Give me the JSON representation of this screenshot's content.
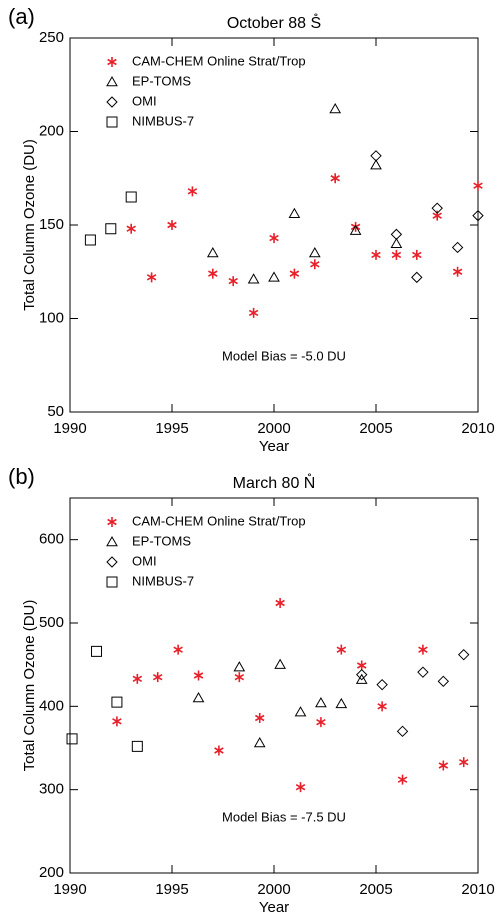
{
  "chart_data": [
    {
      "type": "scatter",
      "panel_label": "(a)",
      "title": "October 88 S̊",
      "xlabel": "Year",
      "ylabel": "Total Column Ozone (DU)",
      "annotation": "Model Bias = -5.0 DU",
      "xlim": [
        1990,
        2010
      ],
      "ylim": [
        50,
        250
      ],
      "xticks": [
        1990,
        1995,
        2000,
        2005,
        2010
      ],
      "yticks": [
        50,
        100,
        150,
        200,
        250
      ],
      "series": [
        {
          "name": "CAM-CHEM Online Strat/Trop",
          "color": "#e8202a",
          "marker": "asterisk",
          "x": [
            1993,
            1994,
            1995,
            1996,
            1997,
            1998,
            1999,
            2000,
            2001,
            2002,
            2003,
            2004,
            2005,
            2006,
            2007,
            2008,
            2009,
            2010
          ],
          "values": [
            148,
            122,
            150,
            168,
            124,
            120,
            103,
            143,
            124,
            129,
            175,
            149,
            134,
            134,
            134,
            155,
            125,
            171
          ]
        },
        {
          "name": "EP-TOMS",
          "color": "#000000",
          "marker": "triangle",
          "x": [
            1997,
            1999,
            2000,
            2001,
            2002,
            2003,
            2004,
            2005,
            2006
          ],
          "values": [
            135,
            121,
            122,
            156,
            135,
            212,
            147,
            182,
            140
          ]
        },
        {
          "name": "OMI",
          "color": "#000000",
          "marker": "diamond",
          "x": [
            2005,
            2006,
            2007,
            2008,
            2009,
            2010
          ],
          "values": [
            187,
            145,
            122,
            159,
            138,
            155
          ]
        },
        {
          "name": "NIMBUS-7",
          "color": "#000000",
          "marker": "square",
          "x": [
            1991,
            1992,
            1993
          ],
          "values": [
            142,
            148,
            165
          ]
        }
      ]
    },
    {
      "type": "scatter",
      "panel_label": "(b)",
      "title": "March 80 N̊",
      "xlabel": "Year",
      "ylabel": "Total Column Ozone (DU)",
      "annotation": "Model Bias = -7.5 DU",
      "xlim": [
        1990,
        2010
      ],
      "ylim": [
        200,
        650
      ],
      "xticks": [
        1990,
        1995,
        2000,
        2005,
        2010
      ],
      "yticks": [
        200,
        300,
        400,
        500,
        600
      ],
      "series": [
        {
          "name": "CAM-CHEM Online Strat/Trop",
          "color": "#e8202a",
          "marker": "asterisk",
          "x": [
            1992.3,
            1993.3,
            1994.3,
            1995.3,
            1996.3,
            1997.3,
            1998.3,
            1999.3,
            2000.3,
            2001.3,
            2002.3,
            2003.3,
            2004.3,
            2005.3,
            2006.3,
            2007.3,
            2008.3,
            2009.3
          ],
          "values": [
            382,
            433,
            435,
            468,
            437,
            347,
            435,
            386,
            524,
            303,
            381,
            468,
            449,
            400,
            312,
            468,
            329,
            333
          ]
        },
        {
          "name": "EP-TOMS",
          "color": "#000000",
          "marker": "triangle",
          "x": [
            1996.3,
            1998.3,
            1999.3,
            2000.3,
            2001.3,
            2002.3,
            2003.3,
            2004.3
          ],
          "values": [
            410,
            447,
            356,
            450,
            393,
            404,
            403,
            432
          ]
        },
        {
          "name": "OMI",
          "color": "#000000",
          "marker": "diamond",
          "x": [
            2004.3,
            2005.3,
            2006.3,
            2007.3,
            2008.3,
            2009.3
          ],
          "values": [
            438,
            426,
            370,
            441,
            430,
            462
          ]
        },
        {
          "name": "NIMBUS-7",
          "color": "#000000",
          "marker": "square",
          "x": [
            1990.1,
            1991.3,
            1992.3,
            1993.3
          ],
          "values": [
            361,
            466,
            405,
            352
          ]
        }
      ]
    }
  ]
}
